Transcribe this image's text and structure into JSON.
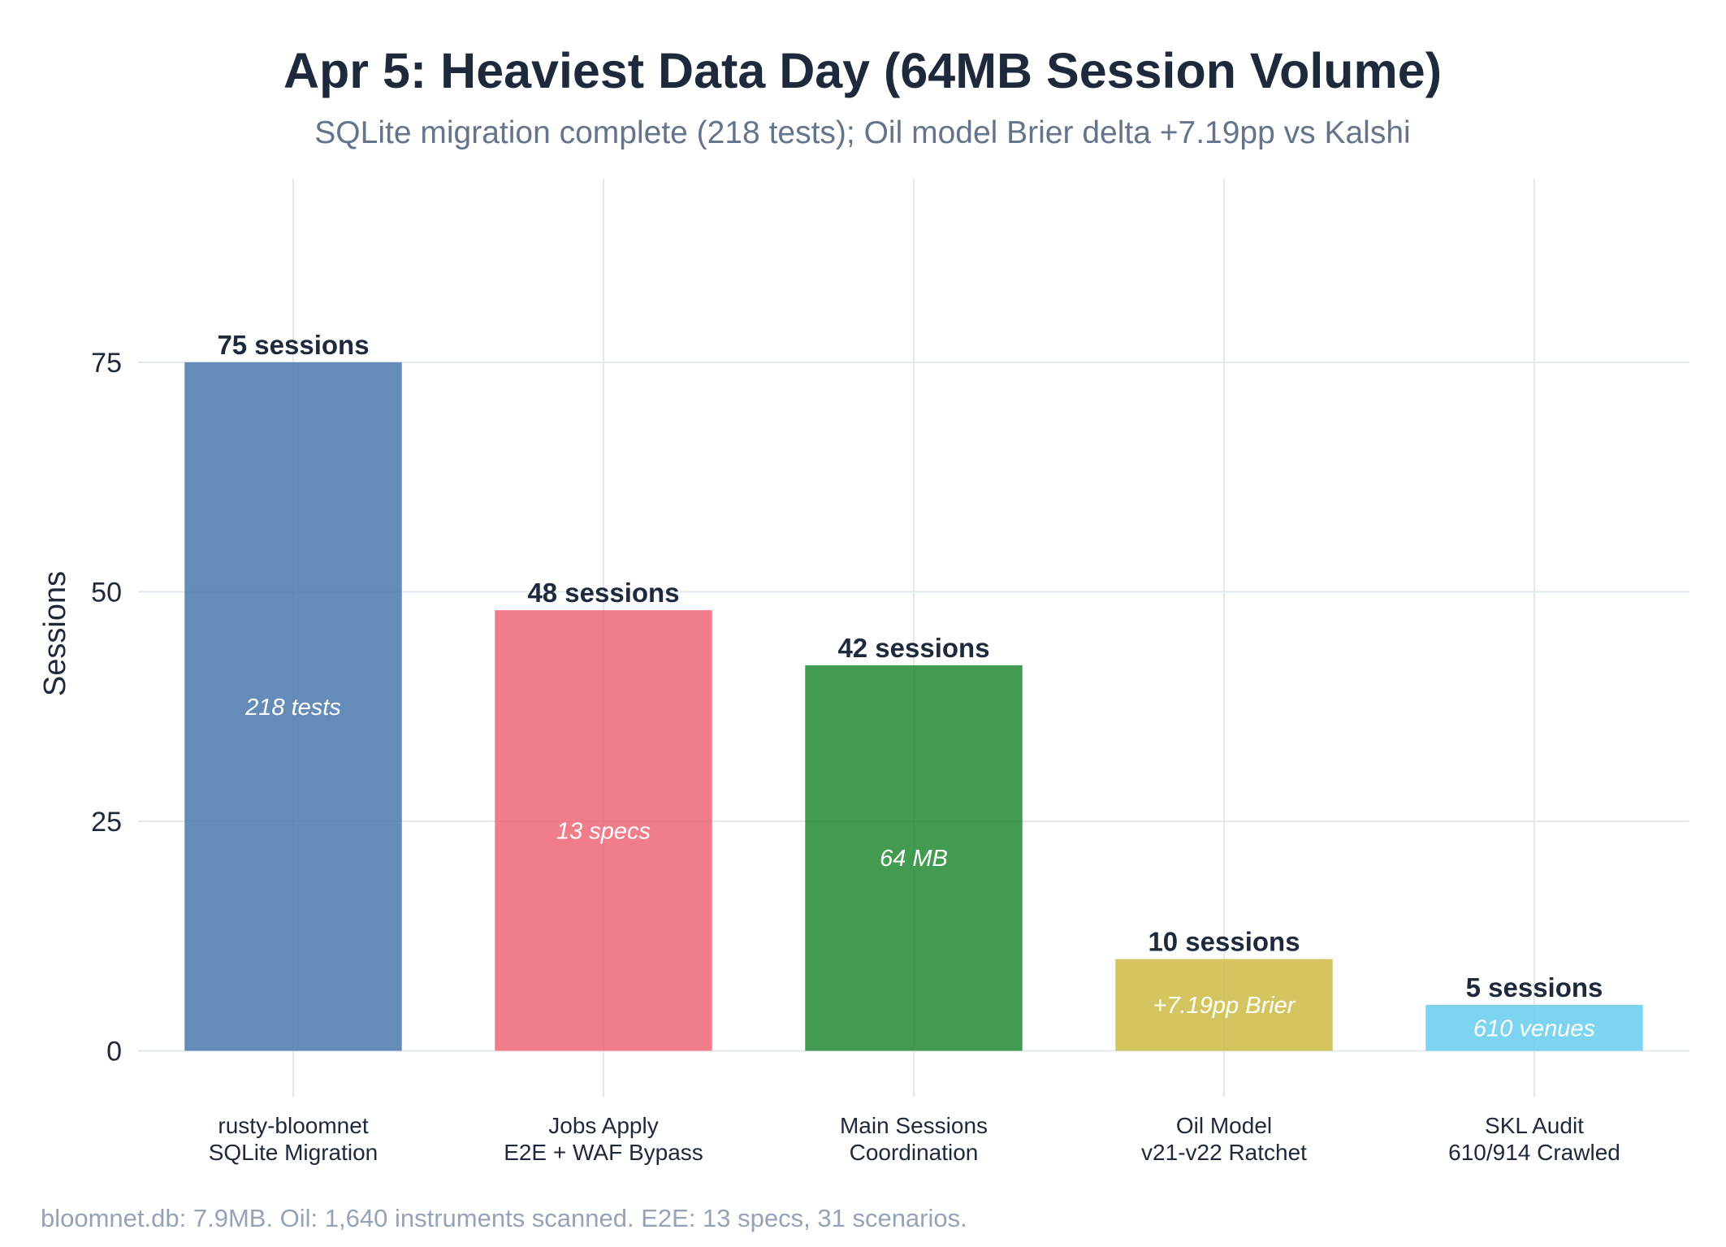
{
  "chart_data": {
    "type": "bar",
    "title": "Apr 5: Heaviest Data Day (64MB Session Volume)",
    "subtitle": "SQLite migration complete (218 tests); Oil model Brier delta +7.19pp vs Kalshi",
    "ylabel": "Sessions",
    "xlabel": "",
    "ylim": [
      -5,
      95
    ],
    "yticks": [
      0,
      25,
      50,
      75
    ],
    "grid": true,
    "categories": [
      [
        "rusty-bloomnet",
        "SQLite Migration"
      ],
      [
        "Jobs Apply",
        "E2E + WAF Bypass"
      ],
      [
        "Main Sessions",
        "Coordination"
      ],
      [
        "Oil Model",
        "v21-v22 Ratchet"
      ],
      [
        "SKL Audit",
        "610/914 Crawled"
      ]
    ],
    "values": [
      75,
      48,
      42,
      10,
      5
    ],
    "value_labels": [
      "75 sessions",
      "48 sessions",
      "42 sessions",
      "10 sessions",
      "5 sessions"
    ],
    "annotations": [
      "218 tests",
      "13 specs",
      "64 MB",
      "+7.19pp Brier",
      "610 venues"
    ],
    "colors": [
      "#4a78ab",
      "#ee6677",
      "#228833",
      "#ccbb44",
      "#66ccee"
    ],
    "footnote": "bloomnet.db: 7.9MB. Oil: 1,640 instruments scanned. E2E: 13 specs, 31 scenarios."
  }
}
